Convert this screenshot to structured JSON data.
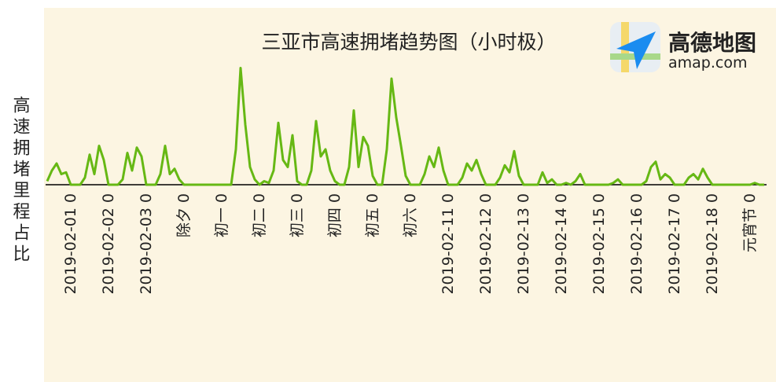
{
  "chart_data": {
    "type": "line",
    "title": "三亚市高速拥堵趋势图（小时极）",
    "y_label": "高速拥堵里程占比",
    "logo": {
      "name": "高德地图",
      "url": "amap.com"
    },
    "color": "#66b814",
    "ylim": [
      0,
      100
    ],
    "categories": [
      null,
      null,
      null,
      null,
      null,
      "2019-02-01 0",
      null,
      null,
      null,
      null,
      null,
      null,
      null,
      "2019-02-02 0",
      null,
      null,
      null,
      null,
      null,
      null,
      null,
      "2019-02-03 0",
      null,
      null,
      null,
      null,
      null,
      null,
      null,
      "除夕 0",
      null,
      null,
      null,
      null,
      null,
      null,
      null,
      "初一 0",
      null,
      null,
      null,
      null,
      null,
      null,
      null,
      "初二 0",
      null,
      null,
      null,
      null,
      null,
      null,
      null,
      "初三 0",
      null,
      null,
      null,
      null,
      null,
      null,
      null,
      "初四 0",
      null,
      null,
      null,
      null,
      null,
      null,
      null,
      "初五 0",
      null,
      null,
      null,
      null,
      null,
      null,
      null,
      "初六 0",
      null,
      null,
      null,
      null,
      null,
      null,
      null,
      "2019-02-11 0",
      null,
      null,
      null,
      null,
      null,
      null,
      null,
      "2019-02-12 0",
      null,
      null,
      null,
      null,
      null,
      null,
      null,
      "2019-02-13 0",
      null,
      null,
      null,
      null,
      null,
      null,
      null,
      "2019-02-14 0",
      null,
      null,
      null,
      null,
      null,
      null,
      null,
      "2019-02-15 0",
      null,
      null,
      null,
      null,
      null,
      null,
      null,
      "2019-02-16 0",
      null,
      null,
      null,
      null,
      null,
      null,
      null,
      "2019-02-17 0",
      null,
      null,
      null,
      null,
      null,
      null,
      null,
      "2019-02-18 0",
      null,
      null,
      null,
      null,
      null,
      null,
      null,
      "元宵节 0",
      null,
      null,
      null
    ],
    "values": [
      2,
      8,
      12,
      6,
      7,
      0,
      0,
      0,
      4,
      17,
      6,
      22,
      14,
      0,
      0,
      0,
      3,
      18,
      8,
      21,
      16,
      0,
      0,
      0,
      6,
      22,
      6,
      9,
      3,
      0,
      0,
      0,
      0,
      0,
      0,
      0,
      0,
      0,
      0,
      0,
      20,
      66,
      34,
      10,
      3,
      0,
      2,
      1,
      8,
      35,
      14,
      10,
      28,
      2,
      0,
      0,
      8,
      36,
      16,
      20,
      8,
      2,
      0,
      0,
      10,
      42,
      10,
      27,
      22,
      5,
      0,
      0,
      20,
      60,
      38,
      22,
      5,
      0,
      0,
      0,
      6,
      16,
      10,
      21,
      8,
      0,
      0,
      0,
      4,
      12,
      8,
      14,
      6,
      0,
      0,
      0,
      4,
      11,
      7,
      19,
      5,
      0,
      0,
      0,
      0,
      7,
      1,
      3,
      0,
      0,
      1,
      0,
      2,
      6,
      0,
      0,
      0,
      0,
      0,
      0,
      1,
      3,
      0,
      0,
      0,
      0,
      0,
      2,
      10,
      13,
      3,
      6,
      4,
      0,
      0,
      0,
      4,
      6,
      3,
      9,
      4,
      0,
      0,
      0,
      0,
      0,
      0,
      0,
      0,
      0,
      1,
      0,
      0
    ]
  }
}
